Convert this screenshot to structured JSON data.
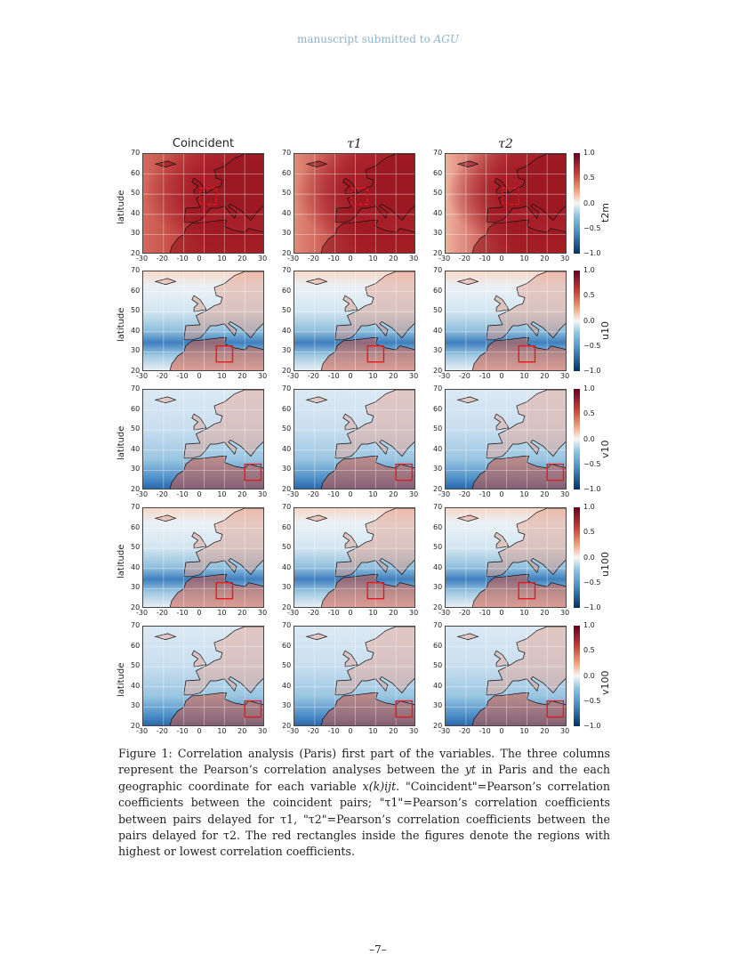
{
  "header": {
    "text_prefix": "manuscript submitted to ",
    "text_journal": "AGU"
  },
  "figure": {
    "column_titles": [
      "Coincident",
      "τ1",
      "τ2"
    ],
    "ylabel": "latitude",
    "x_ticks": [
      "-30",
      "-20",
      "-10",
      "0",
      "10",
      "20",
      "30"
    ],
    "y_ticks": [
      "70",
      "60",
      "50",
      "40",
      "30",
      "20"
    ],
    "colorbar_ticks": [
      "1.0",
      "0.5",
      "0.0",
      "−0.5",
      "−1.0"
    ],
    "colormap": "RdBu_r",
    "highlight_color": "#e41a1c",
    "rows": [
      {
        "variable": "t2m",
        "box": {
          "lon": [
            -2,
            6
          ],
          "lat": [
            45,
            53
          ]
        }
      },
      {
        "variable": "u10",
        "box": {
          "lon": [
            6,
            14
          ],
          "lat": [
            25,
            33
          ]
        }
      },
      {
        "variable": "v10",
        "box": {
          "lon": [
            20,
            28
          ],
          "lat": [
            25,
            33
          ]
        }
      },
      {
        "variable": "u100",
        "box": {
          "lon": [
            6,
            14
          ],
          "lat": [
            25,
            33
          ]
        }
      },
      {
        "variable": "v100",
        "box": {
          "lon": [
            20,
            28
          ],
          "lat": [
            25,
            33
          ]
        }
      }
    ]
  },
  "caption": {
    "l1": "Figure  1: Correlation analysis (Paris) first part of the variables. The three columns represent the Pearson’s correlation analyses between the ",
    "yt": "yt",
    "l2": " in Paris and the each geographic coordinate for each variable ",
    "x": "x(k)ijt",
    "l3": ". \"Coincident\"=Pearson’s correlation coefficients between the coincident pairs; \"τ1\"=Pearson’s correlation coefficients between pairs delayed for τ1, \"τ2\"=Pearson’s correlation coefficients between the pairs delayed for τ2. The red rectangles inside the figures denote the regions with highest or lowest correlation coefficients."
  },
  "page_number": "–7–"
}
